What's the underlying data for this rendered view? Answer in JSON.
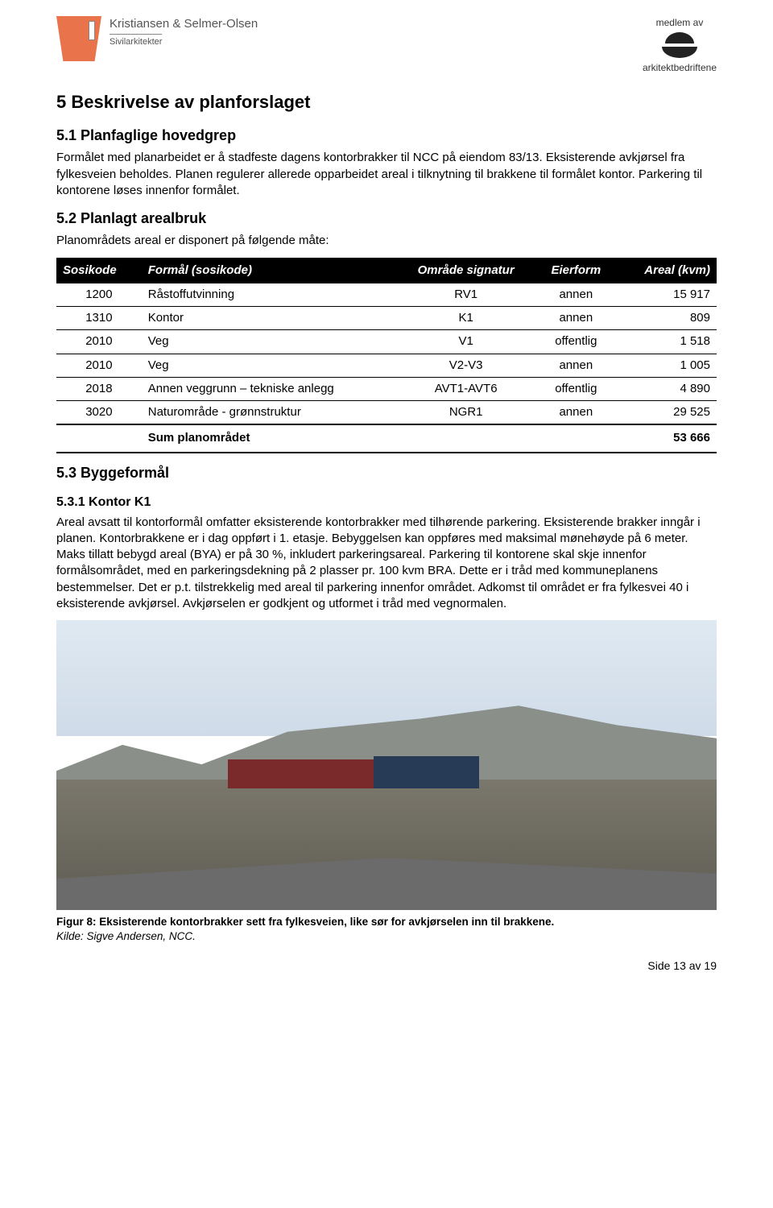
{
  "header": {
    "firm_name": "Kristiansen & Selmer-Olsen",
    "firm_sub": "Sivilarkitekter",
    "medlem_av": "medlem av",
    "org": "arkitektbedriftene"
  },
  "section5": {
    "num_title": "5   Beskrivelse av planforslaget",
    "s51_title": "5.1   Planfaglige hovedgrep",
    "s51_p": "Formålet med planarbeidet er å stadfeste dagens kontorbrakker til NCC på eiendom 83/13. Eksisterende avkjørsel fra fylkesveien beholdes. Planen regulerer allerede opparbeidet areal i tilknytning til brakkene til formålet kontor. Parkering til kontorene løses innenfor formålet.",
    "s52_title": "5.2   Planlagt arealbruk",
    "s52_intro": "Planområdets areal er disponert på følgende måte:",
    "s53_title": "5.3   Byggeformål",
    "s531_title": "5.3.1  Kontor K1",
    "s531_p": "Areal avsatt til kontorformål omfatter eksisterende kontorbrakker med tilhørende parkering. Eksisterende brakker inngår i planen. Kontorbrakkene er i dag oppført i 1. etasje. Bebyggelsen kan oppføres med maksimal mønehøyde på 6 meter. Maks tillatt bebygd areal (BYA) er på 30 %, inkludert parkeringsareal. Parkering til kontorene skal skje innenfor formålsområdet, med en parkeringsdekning på 2 plasser pr. 100 kvm BRA. Dette er i tråd med kommuneplanens bestemmelser. Det er p.t. tilstrekkelig med areal til parkering innenfor området. Adkomst til området er fra fylkesvei 40 i eksisterende avkjørsel. Avkjørselen er godkjent og utformet i tråd med vegnormalen."
  },
  "table": {
    "headers": {
      "sosikode": "Sosikode",
      "formal": "Formål (sosikode)",
      "omrade": "Område signatur",
      "eierform": "Eierform",
      "areal": "Areal (kvm)"
    },
    "rows": [
      {
        "sosikode": "1200",
        "formal": "Råstoffutvinning",
        "omrade": "RV1",
        "eierform": "annen",
        "areal": "15 917"
      },
      {
        "sosikode": "1310",
        "formal": "Kontor",
        "omrade": "K1",
        "eierform": "annen",
        "areal": "809"
      },
      {
        "sosikode": "2010",
        "formal": "Veg",
        "omrade": "V1",
        "eierform": "offentlig",
        "areal": "1 518"
      },
      {
        "sosikode": "2010",
        "formal": "Veg",
        "omrade": "V2-V3",
        "eierform": "annen",
        "areal": "1 005"
      },
      {
        "sosikode": "2018",
        "formal": "Annen veggrunn – tekniske anlegg",
        "omrade": "AVT1-AVT6",
        "eierform": "offentlig",
        "areal": "4 890"
      },
      {
        "sosikode": "3020",
        "formal": "Naturområde - grønnstruktur",
        "omrade": "NGR1",
        "eierform": "annen",
        "areal": "29 525"
      }
    ],
    "sum_label": "Sum planområdet",
    "sum_value": "53 666"
  },
  "figure": {
    "caption_bold": "Figur 8: Eksisterende kontorbrakker sett fra fylkesveien, like sør for avkjørselen inn til brakkene.",
    "caption_italic": "Kilde: Sigve Andersen, NCC."
  },
  "footer": {
    "text": "Side 13 av 19"
  },
  "colors": {
    "logo_bg": "#e9734a",
    "table_header_bg": "#000000",
    "table_header_fg": "#ffffff"
  }
}
